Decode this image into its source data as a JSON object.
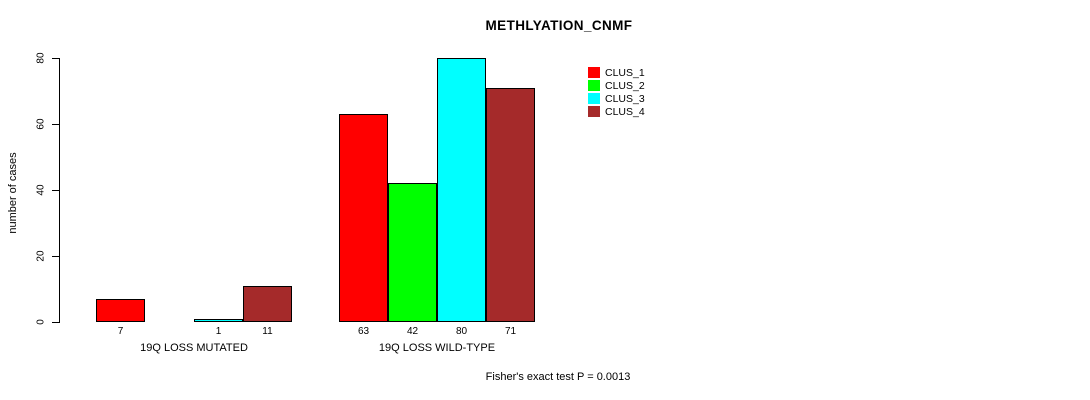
{
  "title": "METHLYATION_CNMF",
  "y_axis": {
    "label": "number of cases",
    "ticks": [
      0,
      20,
      40,
      60,
      80
    ]
  },
  "footer": "Fisher's exact test P = 0.0013",
  "colors": {
    "clus_1": "#FF0000",
    "clus_2": "#00FF00",
    "clus_3": "#00FFFF",
    "clus_4": "#A52A2A",
    "axis": "#000000",
    "background": "#FFFFFF"
  },
  "chart_data": {
    "type": "bar",
    "title": "METHLYATION_CNMF",
    "xlabel": "",
    "ylabel": "number of cases",
    "ylim": [
      0,
      80
    ],
    "yticks": [
      0,
      20,
      40,
      60,
      80
    ],
    "grid": false,
    "legend_position": "top-right",
    "categories": [
      "19Q LOSS MUTATED",
      "19Q LOSS WILD-TYPE"
    ],
    "series": [
      {
        "name": "CLUS_1",
        "color": "#FF0000",
        "values": [
          7,
          63
        ]
      },
      {
        "name": "CLUS_2",
        "color": "#00FF00",
        "values": [
          0,
          42
        ]
      },
      {
        "name": "CLUS_3",
        "color": "#00FFFF",
        "values": [
          1,
          80
        ]
      },
      {
        "name": "CLUS_4",
        "color": "#A52A2A",
        "values": [
          11,
          71
        ]
      }
    ],
    "groups": [
      {
        "label": "19Q LOSS MUTATED",
        "values": [
          7,
          0,
          1,
          11
        ],
        "count_labels": [
          "7",
          "",
          "1",
          "11"
        ]
      },
      {
        "label": "19Q LOSS WILD-TYPE",
        "values": [
          63,
          42,
          80,
          71
        ],
        "count_labels": [
          "63",
          "42",
          "80",
          "71"
        ]
      }
    ],
    "legend": [
      {
        "label": "CLUS_1",
        "color": "#FF0000"
      },
      {
        "label": "CLUS_2",
        "color": "#00FF00"
      },
      {
        "label": "CLUS_3",
        "color": "#00FFFF"
      },
      {
        "label": "CLUS_4",
        "color": "#A52A2A"
      }
    ],
    "annotation": "Fisher's exact test P = 0.0013"
  }
}
